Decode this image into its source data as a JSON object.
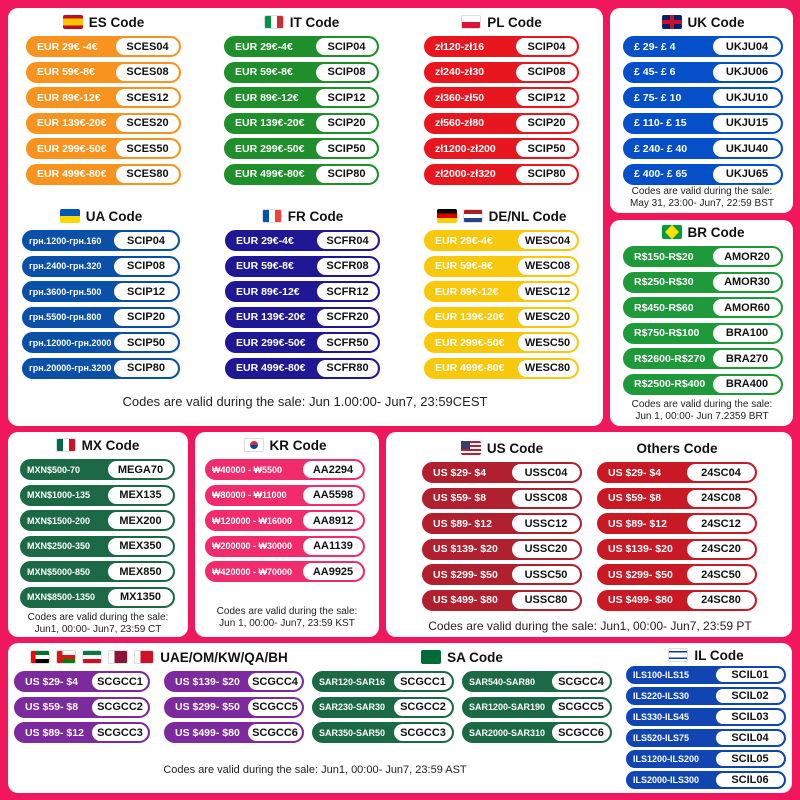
{
  "panels": {
    "eu": {
      "es": {
        "title": "ES Code",
        "rows": [
          {
            "p": "EUR 29€ -4€",
            "k": "SCES04"
          },
          {
            "p": "EUR 59€-8€",
            "k": "SCES08"
          },
          {
            "p": "EUR 89€-12€",
            "k": "SCES12"
          },
          {
            "p": "EUR 139€-20€",
            "k": "SCES20"
          },
          {
            "p": "EUR 299€-50€",
            "k": "SCES50"
          },
          {
            "p": "EUR 499€-80€",
            "k": "SCES80"
          }
        ]
      },
      "it": {
        "title": "IT Code",
        "rows": [
          {
            "p": "EUR 29€-4€",
            "k": "SCIP04"
          },
          {
            "p": "EUR 59€-8€",
            "k": "SCIP08"
          },
          {
            "p": "EUR 89€-12€",
            "k": "SCIP12"
          },
          {
            "p": "EUR 139€-20€",
            "k": "SCIP20"
          },
          {
            "p": "EUR 299€-50€",
            "k": "SCIP50"
          },
          {
            "p": "EUR 499€-80€",
            "k": "SCIP80"
          }
        ]
      },
      "pl": {
        "title": "PL Code",
        "rows": [
          {
            "p": "zł120-zł16",
            "k": "SCIP04"
          },
          {
            "p": "zł240-zł30",
            "k": "SCIP08"
          },
          {
            "p": "zł360-zł50",
            "k": "SCIP12"
          },
          {
            "p": "zł560-zł80",
            "k": "SCIP20"
          },
          {
            "p": "zł1200-zł200",
            "k": "SCIP50"
          },
          {
            "p": "zł2000-zł320",
            "k": "SCIP80"
          }
        ]
      },
      "ua": {
        "title": "UA Code",
        "rows": [
          {
            "p": "грн.1200-грн.160",
            "k": "SCIP04"
          },
          {
            "p": "грн.2400-грн.320",
            "k": "SCIP08"
          },
          {
            "p": "грн.3600-грн.500",
            "k": "SCIP12"
          },
          {
            "p": "грн.5500-грн.800",
            "k": "SCIP20"
          },
          {
            "p": "грн.12000-грн.2000",
            "k": "SCIP50"
          },
          {
            "p": "грн.20000-грн.3200",
            "k": "SCIP80"
          }
        ]
      },
      "fr": {
        "title": "FR Code",
        "rows": [
          {
            "p": "EUR 29€-4€",
            "k": "SCFR04"
          },
          {
            "p": "EUR 59€-8€",
            "k": "SCFR08"
          },
          {
            "p": "EUR 89€-12€",
            "k": "SCFR12"
          },
          {
            "p": "EUR 139€-20€",
            "k": "SCFR20"
          },
          {
            "p": "EUR 299€-50€",
            "k": "SCFR50"
          },
          {
            "p": "EUR 499€-80€",
            "k": "SCFR80"
          }
        ]
      },
      "de": {
        "title": "DE/NL Code",
        "rows": [
          {
            "p": "EUR 29€-4€",
            "k": "WESC04"
          },
          {
            "p": "EUR 59€-8€",
            "k": "WESC08"
          },
          {
            "p": "EUR 89€-12€",
            "k": "WESC12"
          },
          {
            "p": "EUR 139€-20€",
            "k": "WESC20"
          },
          {
            "p": "EUR 299€-50€",
            "k": "WESC50"
          },
          {
            "p": "EUR 499€-80€",
            "k": "WESC80"
          }
        ]
      },
      "valid": "Codes are valid during the sale: Jun 1.00:00- Jun7, 23:59CEST"
    },
    "uk": {
      "title": "UK Code",
      "rows": [
        {
          "p": "£ 29- £ 4",
          "k": "UKJU04"
        },
        {
          "p": "£ 45- £ 6",
          "k": "UKJU06"
        },
        {
          "p": "£ 75- £ 10",
          "k": "UKJU10"
        },
        {
          "p": "£ 110- £ 15",
          "k": "UKJU15"
        },
        {
          "p": "£ 240- £ 40",
          "k": "UKJU40"
        },
        {
          "p": "£ 400- £ 65",
          "k": "UKJU65"
        }
      ],
      "valid1": "Codes are valid during the sale:",
      "valid2": "May 31, 23:00- Jun7, 22:59 BST"
    },
    "br": {
      "title": "BR Code",
      "rows": [
        {
          "p": "R$150-R$20",
          "k": "AMOR20"
        },
        {
          "p": "R$250-R$30",
          "k": "AMOR30"
        },
        {
          "p": "R$450-R$60",
          "k": "AMOR60"
        },
        {
          "p": "R$750-R$100",
          "k": "BRA100"
        },
        {
          "p": "R$2600-R$270",
          "k": "BRA270"
        },
        {
          "p": "R$2500-R$400",
          "k": "BRA400"
        }
      ],
      "valid1": "Codes are valid during the sale:",
      "valid2": "Jun 1, 00:00- Jun 7.2359 BRT"
    },
    "mx": {
      "title": "MX Code",
      "rows": [
        {
          "p": "MXN$500-70",
          "k": "MEGA70"
        },
        {
          "p": "MXN$1000-135",
          "k": "MEX135"
        },
        {
          "p": "MXN$1500-200",
          "k": "MEX200"
        },
        {
          "p": "MXN$2500-350",
          "k": "MEX350"
        },
        {
          "p": "MXN$5000-850",
          "k": "MEX850"
        },
        {
          "p": "MXN$8500-1350",
          "k": "MX1350"
        }
      ],
      "valid1": "Codes are valid during the sale:",
      "valid2": "Jun1, 00:00- Jun7, 23:59 CT"
    },
    "kr": {
      "title": "KR Code",
      "rows": [
        {
          "p": "₩40000 - ₩5500",
          "k": "AA2294"
        },
        {
          "p": "₩80000 - ₩11000",
          "k": "AA5598"
        },
        {
          "p": "₩120000 - ₩16000",
          "k": "AA8912"
        },
        {
          "p": "₩200000 - ₩30000",
          "k": "AA1139"
        },
        {
          "p": "₩420000 - ₩70000",
          "k": "AA9925"
        }
      ],
      "valid1": "Codes are valid during the sale:",
      "valid2": "Jun 1, 00:00- Jun7, 23:59 KST"
    },
    "us": {
      "title": "US Code",
      "rows": [
        {
          "p": "US $29- $4",
          "k": "USSC04"
        },
        {
          "p": "US $59- $8",
          "k": "USSC08"
        },
        {
          "p": "US $89- $12",
          "k": "USSC12"
        },
        {
          "p": "US $139- $20",
          "k": "USSC20"
        },
        {
          "p": "US $299- $50",
          "k": "USSC50"
        },
        {
          "p": "US $499- $80",
          "k": "USSC80"
        }
      ]
    },
    "others": {
      "title": "Others Code",
      "rows": [
        {
          "p": "US $29- $4",
          "k": "24SC04"
        },
        {
          "p": "US $59- $8",
          "k": "24SC08"
        },
        {
          "p": "US $89- $12",
          "k": "24SC12"
        },
        {
          "p": "US $139- $20",
          "k": "24SC20"
        },
        {
          "p": "US $299- $50",
          "k": "24SC50"
        },
        {
          "p": "US $499- $80",
          "k": "24SC80"
        }
      ]
    },
    "us_valid": "Codes are valid during the sale: Jun1, 00:00- Jun7, 23:59 PT",
    "uae": {
      "title": "UAE/OM/KW/QA/BH",
      "left": [
        {
          "p": "US $29- $4",
          "k": "SCGCC1"
        },
        {
          "p": "US $59- $8",
          "k": "SCGCC2"
        },
        {
          "p": "US $89- $12",
          "k": "SCGCC3"
        }
      ],
      "right": [
        {
          "p": "US $139- $20",
          "k": "SCGCC4"
        },
        {
          "p": "US $299- $50",
          "k": "SCGCC5"
        },
        {
          "p": "US $499- $80",
          "k": "SCGCC6"
        }
      ]
    },
    "sa": {
      "title": "SA Code",
      "left": [
        {
          "p": "SAR120-SAR16",
          "k": "SCGCC1"
        },
        {
          "p": "SAR230-SAR30",
          "k": "SCGCC2"
        },
        {
          "p": "SAR350-SAR50",
          "k": "SCGCC3"
        }
      ],
      "right": [
        {
          "p": "SAR540-SAR80",
          "k": "SCGCC4"
        },
        {
          "p": "SAR1200-SAR190",
          "k": "SCGCC5"
        },
        {
          "p": "SAR2000-SAR310",
          "k": "SCGCC6"
        }
      ]
    },
    "gcc_valid": "Codes are valid during the sale: Jun1, 00:00- Jun7, 23:59 AST",
    "il": {
      "title": "IL Code",
      "rows": [
        {
          "p": "ILS100-ILS15",
          "k": "SCIL01"
        },
        {
          "p": "ILS220-ILS30",
          "k": "SCIL02"
        },
        {
          "p": "ILS330-ILS45",
          "k": "SCIL03"
        },
        {
          "p": "ILS520-ILS75",
          "k": "SCIL04"
        },
        {
          "p": "ILS1200-ILS200",
          "k": "SCIL05"
        },
        {
          "p": "ILS2000-ILS300",
          "k": "SCIL06"
        }
      ]
    }
  },
  "colors": {
    "es": "#f7931e",
    "it": "#1e8f2a",
    "pl": "#e8161e",
    "ua": "#0a4fa8",
    "fr": "#1f1794",
    "de": "#f8c80d",
    "uk": "#0550c9",
    "br": "#1f9a3b",
    "mx": "#1b6a45",
    "kr": "#f22b6c",
    "us": "#b0202f",
    "others": "#c81925",
    "uae": "#7c2a9e",
    "sa": "#1b6a45",
    "il": "#1045b2"
  }
}
